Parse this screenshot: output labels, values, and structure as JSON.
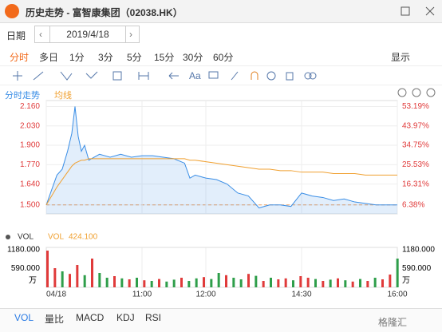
{
  "window": {
    "title": "历史走势 - 富智康集团（02038.HK）"
  },
  "date_bar": {
    "label": "日期",
    "date": "2019/4/18"
  },
  "periods": [
    "分时",
    "多日",
    "1分",
    "3分",
    "5分",
    "15分",
    "30分",
    "60分"
  ],
  "display": "显示",
  "toolbar": {
    "text_tool": "Aa"
  },
  "chart_data": [
    {
      "type": "line",
      "x": [
        0,
        5,
        10,
        15,
        20,
        24,
        27,
        30,
        33,
        36,
        40,
        50,
        60,
        70,
        80,
        90,
        100,
        110,
        120,
        130,
        135,
        140,
        150,
        160,
        170,
        180,
        190,
        200,
        210,
        220,
        230,
        240,
        250,
        260,
        270,
        280,
        290,
        300,
        310,
        320,
        330
      ],
      "series": [
        {
          "name": "分时走势",
          "color": "#3a8ee6",
          "values": [
            1.5,
            1.6,
            1.7,
            1.74,
            1.86,
            1.98,
            2.16,
            1.96,
            1.86,
            1.9,
            1.8,
            1.84,
            1.82,
            1.84,
            1.82,
            1.83,
            1.83,
            1.82,
            1.81,
            1.78,
            1.68,
            1.7,
            1.68,
            1.67,
            1.64,
            1.58,
            1.56,
            1.48,
            1.5,
            1.5,
            1.49,
            1.58,
            1.56,
            1.55,
            1.53,
            1.54,
            1.52,
            1.51,
            1.5,
            1.5,
            1.5
          ]
        },
        {
          "name": "均线",
          "color": "#f0a030",
          "values": [
            1.5,
            1.56,
            1.62,
            1.67,
            1.72,
            1.76,
            1.78,
            1.79,
            1.8,
            1.8,
            1.81,
            1.81,
            1.81,
            1.81,
            1.81,
            1.81,
            1.81,
            1.81,
            1.81,
            1.81,
            1.8,
            1.8,
            1.79,
            1.78,
            1.77,
            1.76,
            1.75,
            1.74,
            1.74,
            1.73,
            1.73,
            1.72,
            1.72,
            1.72,
            1.71,
            1.71,
            1.71,
            1.7,
            1.7,
            1.7,
            1.7
          ]
        }
      ],
      "xlim": [
        0,
        330
      ],
      "xticks": [
        {
          "value": 0,
          "label": "04/18"
        },
        {
          "value": 90,
          "label": "11:00"
        },
        {
          "value": 150,
          "label": "12:00"
        },
        {
          "value": 240,
          "label": "14:30"
        },
        {
          "value": 330,
          "label": "16:00"
        }
      ],
      "ylim": [
        1.44,
        2.2
      ],
      "yticks": [
        {
          "value": 1.5,
          "label": "1.500"
        },
        {
          "value": 1.64,
          "label": "1.640"
        },
        {
          "value": 1.77,
          "label": "1.770"
        },
        {
          "value": 1.9,
          "label": "1.900"
        },
        {
          "value": 2.03,
          "label": "2.030"
        },
        {
          "value": 2.16,
          "label": "2.160"
        }
      ],
      "y2lim": [
        2.13,
        56.03
      ],
      "y2ticks": [
        {
          "value": 6.38,
          "label": "6.38%"
        },
        {
          "value": 16.31,
          "label": "16.31%"
        },
        {
          "value": 25.53,
          "label": "25.53%"
        },
        {
          "value": 34.75,
          "label": "34.75%"
        },
        {
          "value": 43.97,
          "label": "43.97%"
        },
        {
          "value": 53.19,
          "label": "53.19%"
        }
      ],
      "grid": true
    },
    {
      "type": "bar",
      "indicator": "VOL",
      "indicator_value": "424.100",
      "unit": "万",
      "x": [
        0,
        7,
        14,
        21,
        28,
        35,
        42,
        49,
        56,
        63,
        70,
        77,
        84,
        91,
        98,
        105,
        112,
        119,
        126,
        133,
        140,
        147,
        154,
        161,
        168,
        175,
        182,
        189,
        196,
        203,
        210,
        217,
        224,
        231,
        238,
        245,
        252,
        259,
        266,
        273,
        280,
        287,
        294,
        301,
        308,
        315,
        322,
        329
      ],
      "values": [
        1150,
        600,
        500,
        420,
        700,
        380,
        900,
        450,
        300,
        350,
        280,
        250,
        300,
        220,
        200,
        260,
        180,
        240,
        300,
        200,
        280,
        320,
        260,
        450,
        380,
        300,
        250,
        420,
        360,
        200,
        300,
        250,
        280,
        220,
        350,
        300,
        260,
        200,
        240,
        280,
        220,
        180,
        260,
        200,
        300,
        250,
        400,
        900
      ],
      "bar_colors": [
        "#e03a3a",
        "#e03a3a",
        "#2e9e4a",
        "#e03a3a",
        "#e03a3a",
        "#2e9e4a",
        "#e03a3a",
        "#2e9e4a",
        "#2e9e4a",
        "#e03a3a",
        "#2e9e4a",
        "#e03a3a",
        "#2e9e4a",
        "#e03a3a",
        "#2e9e4a",
        "#e03a3a",
        "#2e9e4a",
        "#2e9e4a",
        "#e03a3a",
        "#2e9e4a",
        "#2e9e4a",
        "#e03a3a",
        "#2e9e4a",
        "#2e9e4a",
        "#e03a3a",
        "#2e9e4a",
        "#2e9e4a",
        "#e03a3a",
        "#2e9e4a",
        "#e03a3a",
        "#2e9e4a",
        "#e03a3a",
        "#e03a3a",
        "#2e9e4a",
        "#e03a3a",
        "#e03a3a",
        "#2e9e4a",
        "#e03a3a",
        "#2e9e4a",
        "#e03a3a",
        "#2e9e4a",
        "#e03a3a",
        "#2e9e4a",
        "#e03a3a",
        "#2e9e4a",
        "#e03a3a",
        "#e03a3a",
        "#2e9e4a"
      ],
      "xlim": [
        0,
        330
      ],
      "ylim": [
        0,
        1250
      ],
      "yticks": [
        {
          "value": 590,
          "label": "590.000"
        },
        {
          "value": 1180,
          "label": "1180.000"
        }
      ]
    }
  ],
  "indicator_tabs": [
    "VOL",
    "量比",
    "MACD",
    "KDJ",
    "RSI"
  ],
  "watermark": "格隆汇"
}
